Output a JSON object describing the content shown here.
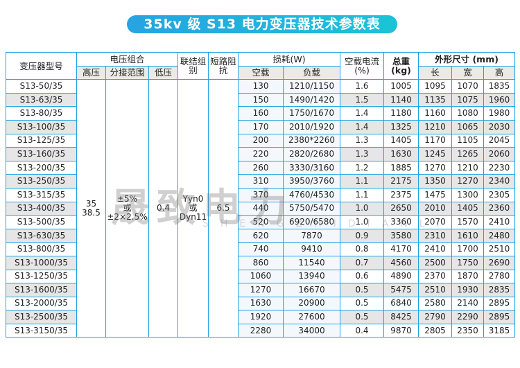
{
  "title": "35kv 级 S13 电力变压器技术参数表",
  "watermark": {
    "text": "晟致电力",
    "pinyin": "SHENGZHIDIANLI"
  },
  "headers": {
    "model": "变压器型号",
    "voltage": "电压组合",
    "hv": "高压",
    "tap": "分接范围",
    "lv": "低压",
    "conn": "联结组别",
    "imp": "短路阻抗",
    "loss": "损耗(W)",
    "noload": "空载",
    "load": "负载",
    "current": "空载电流(%)",
    "weight": "总重(kg)",
    "dims": "外形尺寸 (mm)",
    "len": "长",
    "wid": "宽",
    "hei": "高"
  },
  "merged": {
    "hv": "35\n38.5",
    "tap": "±5%\n或\n±2×2.5%",
    "lv": "0.4",
    "conn": "Yyn0\n或\nDyn11",
    "imp": "6.5"
  },
  "rows": [
    [
      "S13-50/35",
      "130",
      "1210/1150",
      "1.6",
      "1005",
      "1095",
      "1070",
      "1835"
    ],
    [
      "S13-63/35",
      "150",
      "1490/1420",
      "1.5",
      "1140",
      "1135",
      "1075",
      "1960"
    ],
    [
      "S13-80/35",
      "160",
      "1750/1670",
      "1.4",
      "1180",
      "1160",
      "1080",
      "1980"
    ],
    [
      "S13-100/35",
      "170",
      "2010/1920",
      "1.4",
      "1325",
      "1210",
      "1065",
      "2030"
    ],
    [
      "S13-125/35",
      "200",
      "2380*2260",
      "1.3",
      "1405",
      "1170",
      "1105",
      "2045"
    ],
    [
      "S13-160/35",
      "220",
      "2820/2680",
      "1.3",
      "1630",
      "1245",
      "1265",
      "2060"
    ],
    [
      "S13-200/35",
      "260",
      "3330/3160",
      "1.2",
      "1885",
      "1270",
      "1210",
      "2230"
    ],
    [
      "S13-250/35",
      "310",
      "3950/3760",
      "1.1",
      "2175",
      "1350",
      "1270",
      "2340"
    ],
    [
      "S13-315/35",
      "370",
      "4760/4530",
      "1.1",
      "2375",
      "1475",
      "1300",
      "2305"
    ],
    [
      "S13-400/35",
      "440",
      "5750/5470",
      "1.0",
      "2650",
      "2010",
      "1405",
      "2360"
    ],
    [
      "S13-500/35",
      "520",
      "6920/6580",
      "1.0",
      "3360",
      "2070",
      "1570",
      "2410"
    ],
    [
      "S13-630/35",
      "620",
      "7870",
      "0.9",
      "3580",
      "2310",
      "1610",
      "2480"
    ],
    [
      "S13-800/35",
      "740",
      "9410",
      "0.8",
      "4170",
      "2410",
      "1700",
      "2510"
    ],
    [
      "S13-1000/35",
      "860",
      "11540",
      "0.7",
      "4560",
      "2500",
      "1750",
      "2690"
    ],
    [
      "S13-1250/35",
      "1060",
      "13940",
      "0.6",
      "4890",
      "2370",
      "1870",
      "2780"
    ],
    [
      "S13-1600/35",
      "1270",
      "16670",
      "0.5",
      "5475",
      "2510",
      "1930",
      "2835"
    ],
    [
      "S13-2000/35",
      "1630",
      "20900",
      "0.5",
      "6840",
      "2580",
      "2140",
      "2895"
    ],
    [
      "S13-2500/35",
      "1920",
      "27600",
      "0.5",
      "8425",
      "2790",
      "2290",
      "2895"
    ],
    [
      "S13-3150/35",
      "2280",
      "34000",
      "0.4",
      "9870",
      "2805",
      "2350",
      "3185"
    ]
  ]
}
